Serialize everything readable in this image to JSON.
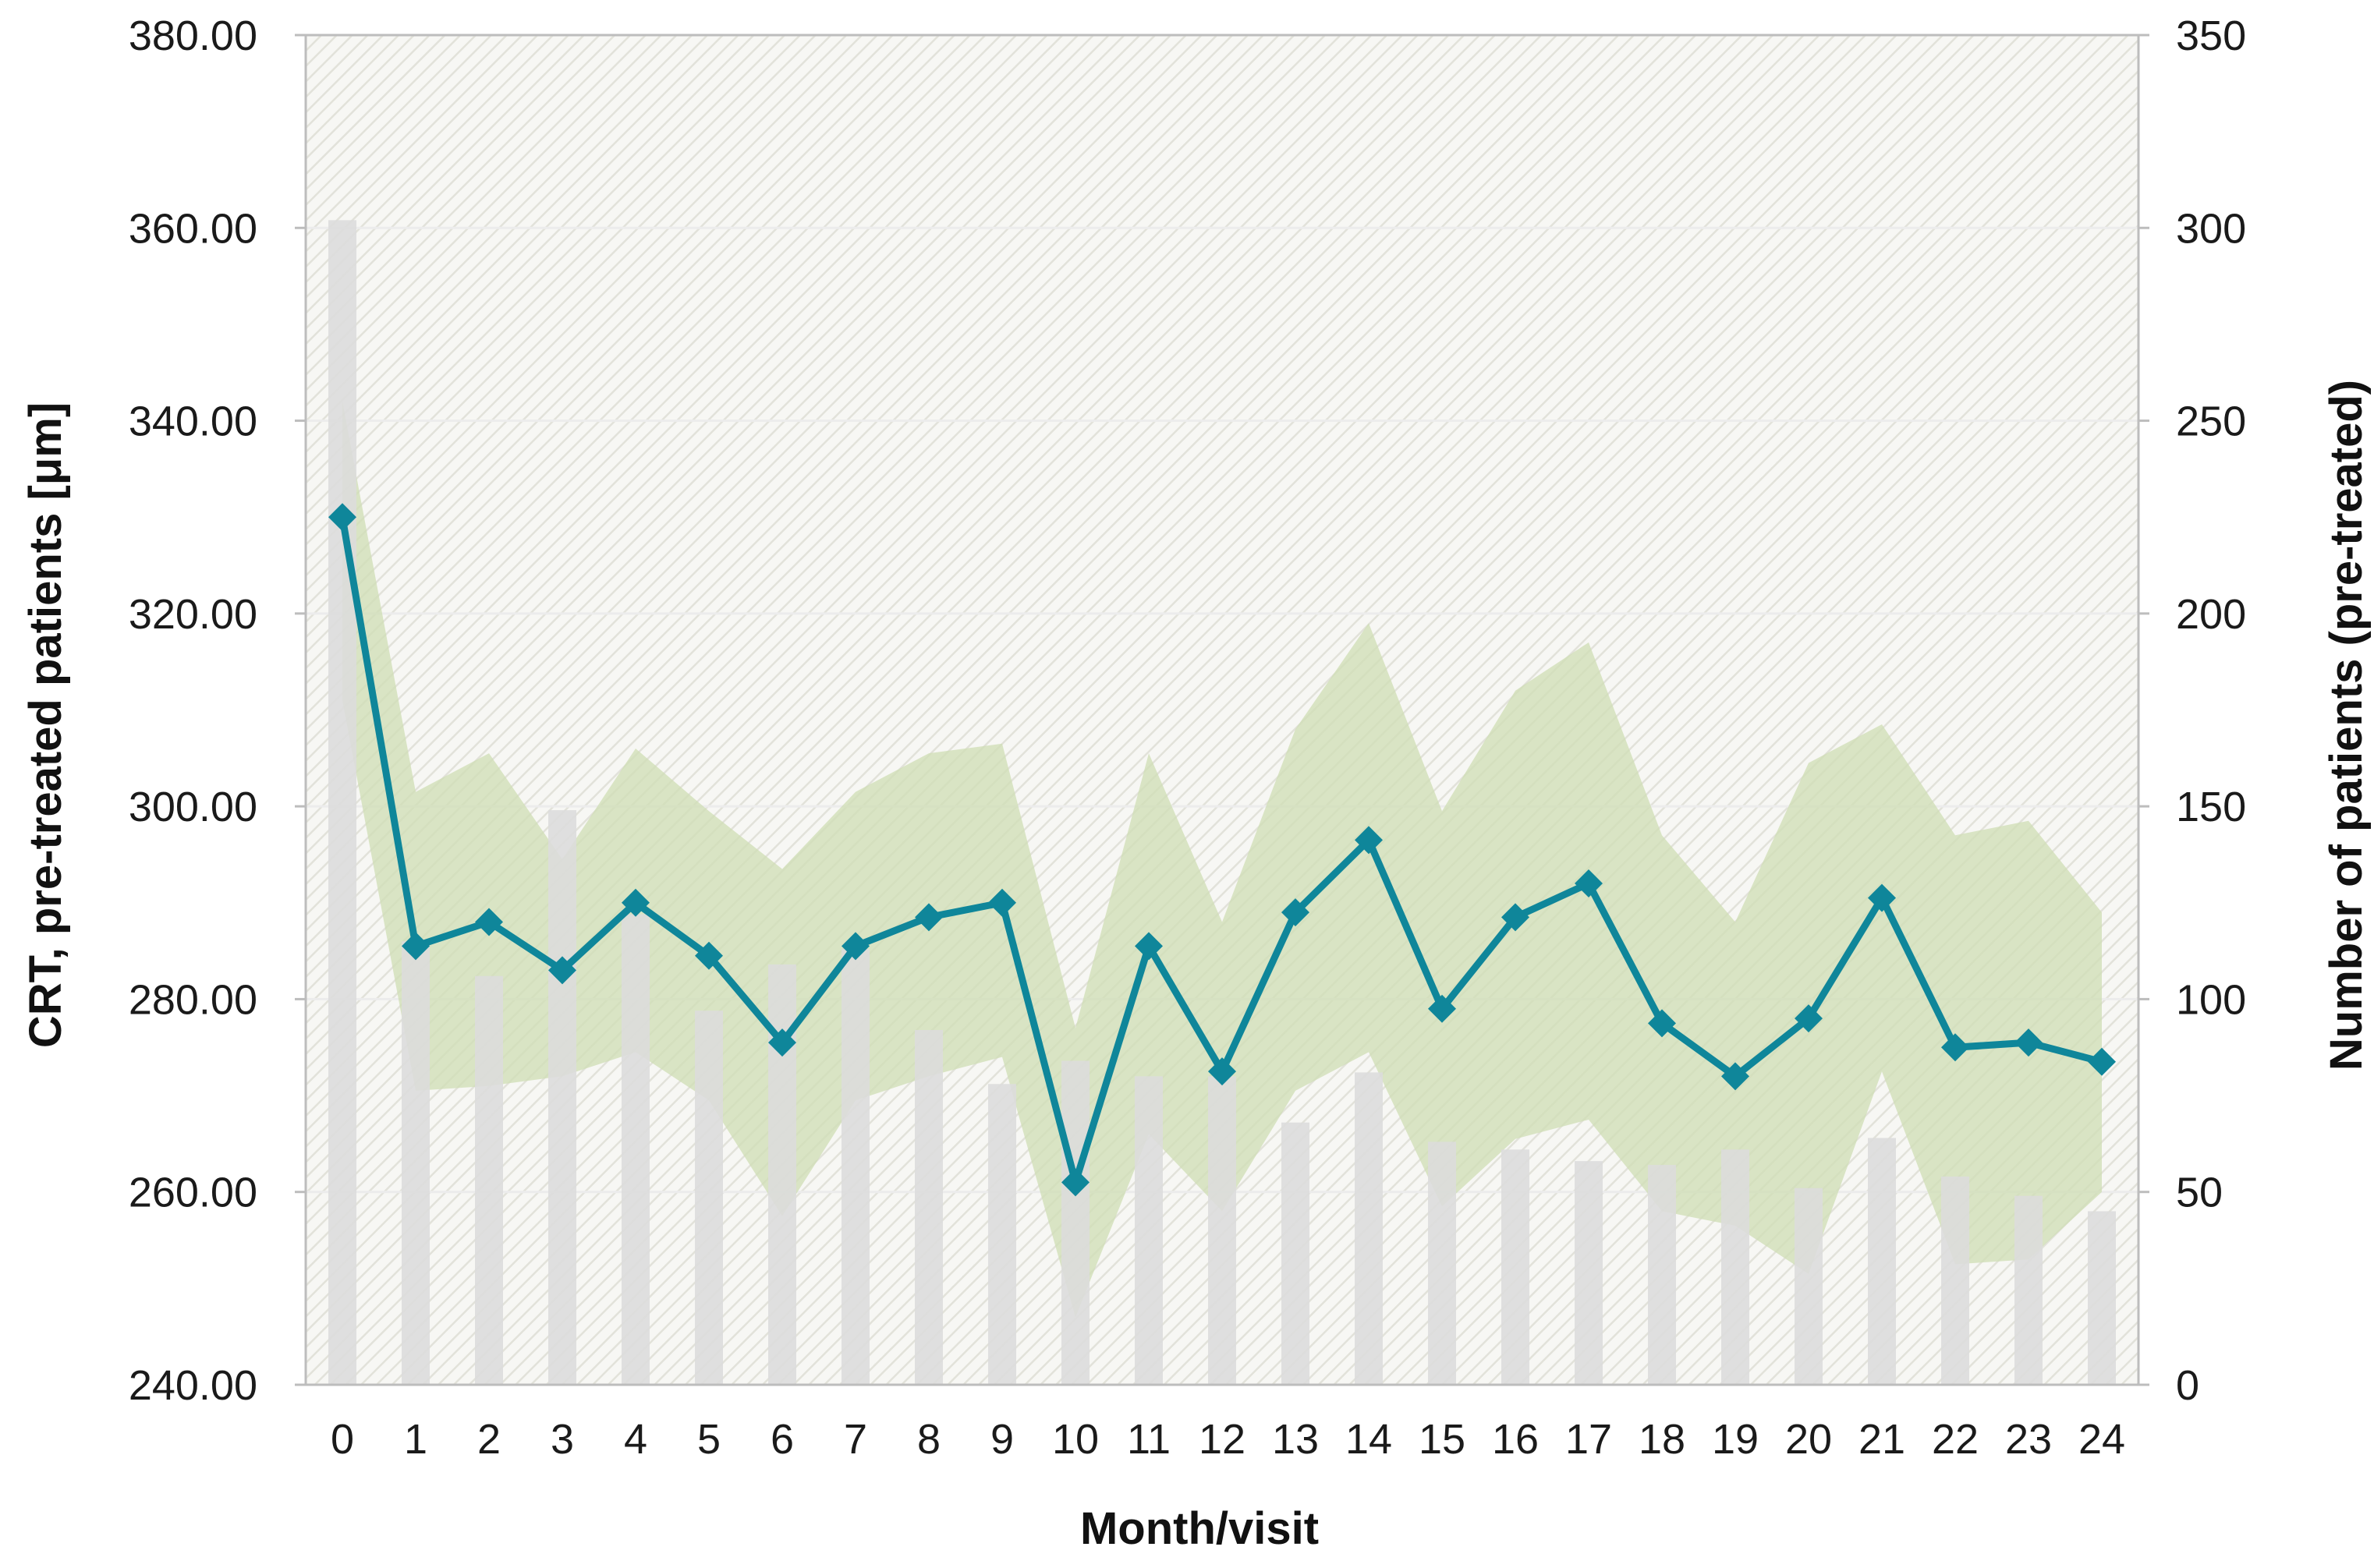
{
  "chart_data": {
    "type": "bar+line",
    "xlabel": "Month/visit",
    "ylabel_left": "CRT, pre-treated patients [μm]",
    "ylabel_right": "Number of patients (pre-treated)",
    "categories": [
      "0",
      "1",
      "2",
      "3",
      "4",
      "5",
      "6",
      "7",
      "8",
      "9",
      "10",
      "11",
      "12",
      "13",
      "14",
      "15",
      "16",
      "17",
      "18",
      "19",
      "20",
      "21",
      "22",
      "23",
      "24"
    ],
    "left_axis": {
      "min": 240,
      "max": 380,
      "step": 20,
      "tick_labels": [
        "240.00",
        "260.00",
        "280.00",
        "300.00",
        "320.00",
        "340.00",
        "360.00",
        "380.00"
      ]
    },
    "right_axis": {
      "min": 0,
      "max": 350,
      "step": 50,
      "tick_labels": [
        "0",
        "50",
        "100",
        "150",
        "200",
        "250",
        "300",
        "350"
      ]
    },
    "series": [
      {
        "kind": "band",
        "axis": "left",
        "upper": [
          342.0,
          301.5,
          305.5,
          294.5,
          306.0,
          299.5,
          293.5,
          301.5,
          305.5,
          306.5,
          277.0,
          305.5,
          288.0,
          308.0,
          319.0,
          299.5,
          312.0,
          317.0,
          297.0,
          288.0,
          304.5,
          308.5,
          297.0,
          298.5,
          289.0
        ],
        "lower": [
          311.0,
          270.5,
          271.0,
          272.0,
          274.5,
          269.5,
          257.5,
          269.5,
          272.0,
          274.0,
          247.0,
          266.0,
          258.0,
          270.5,
          274.5,
          258.5,
          265.5,
          267.5,
          258.0,
          256.5,
          251.5,
          272.5,
          252.5,
          253.0,
          260.0
        ]
      },
      {
        "kind": "line",
        "axis": "left",
        "values": [
          330.0,
          285.5,
          288.0,
          283.0,
          290.0,
          284.5,
          275.5,
          285.5,
          288.5,
          290.0,
          261.0,
          285.5,
          272.5,
          289.0,
          296.5,
          279.0,
          288.5,
          292.0,
          277.5,
          272.0,
          278.0,
          290.5,
          275.0,
          275.5,
          273.5
        ]
      },
      {
        "kind": "bar",
        "axis": "right",
        "values": [
          302,
          115,
          106,
          149,
          122,
          97,
          109,
          113,
          92,
          78,
          84,
          80,
          80,
          68,
          81,
          63,
          61,
          58,
          57,
          61,
          51,
          64,
          54,
          49,
          45
        ]
      }
    ],
    "colors": {
      "line": "#0f869a",
      "band": "#cfddb4",
      "bars": "#dcdcdc",
      "plot_background": "#f7f7f4",
      "hatch": "#e4e4dd",
      "gridline": "#ececec",
      "frame": "#bdbdbd"
    },
    "grid": true,
    "legend": "none"
  }
}
